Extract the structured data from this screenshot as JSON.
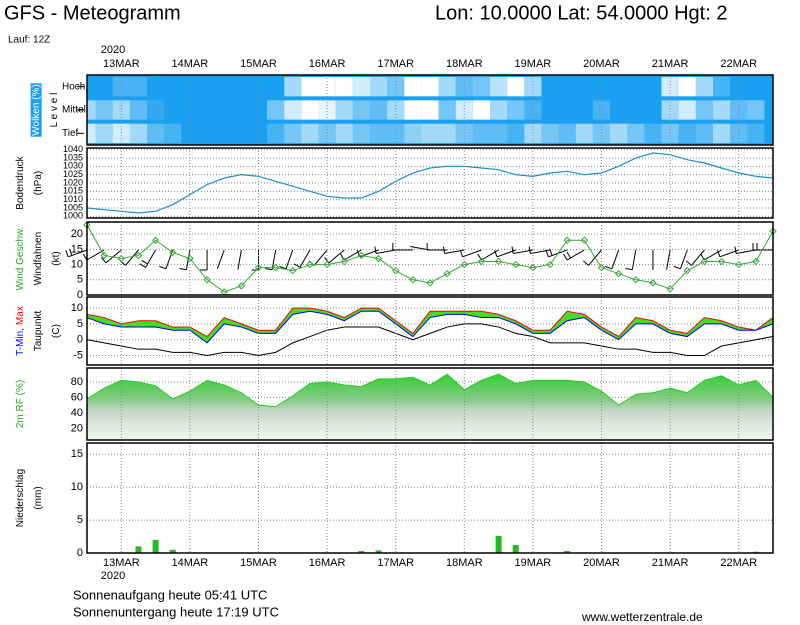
{
  "header": {
    "title": "GFS - Meteogramm",
    "location": "Lon: 10.0000 Lat: 54.0000 Hgt: 2",
    "run": "Lauf: 12Z"
  },
  "chart_data": {
    "type": "meteogram",
    "year": "2020",
    "categories": [
      null,
      null,
      "13MAR",
      null,
      null,
      null,
      "14MAR",
      null,
      null,
      null,
      "15MAR",
      null,
      null,
      null,
      "16MAR",
      null,
      null,
      null,
      "17MAR",
      null,
      null,
      null,
      "18MAR",
      null,
      null,
      null,
      "19MAR",
      null,
      null,
      null,
      "20MAR",
      null,
      null,
      null,
      "21MAR",
      null,
      null,
      null,
      "22MAR",
      null,
      null
    ],
    "panels": [
      {
        "type": "heatmap",
        "ylabel": [
          [
            {
              "text": "Wolken (%)",
              "color": "#ffffff"
            }
          ],
          [
            {
              "text": "L e v e l",
              "color": "#000000"
            }
          ]
        ],
        "background": "#1aa0f0",
        "cloud_color": "#ffffff",
        "series": [
          {
            "name": "Hoch",
            "values": [
              0,
              0,
              20,
              20,
              0,
              0,
              0,
              0,
              0,
              0,
              0,
              0,
              60,
              100,
              100,
              100,
              80,
              60,
              40,
              100,
              100,
              60,
              30,
              40,
              70,
              100,
              60,
              0,
              0,
              0,
              0,
              0,
              0,
              0,
              80,
              100,
              60,
              20,
              0,
              0,
              0
            ]
          },
          {
            "name": "Mittel",
            "values": [
              60,
              40,
              60,
              30,
              10,
              0,
              0,
              0,
              0,
              0,
              0,
              40,
              80,
              100,
              90,
              60,
              40,
              30,
              60,
              100,
              100,
              40,
              80,
              100,
              60,
              40,
              20,
              0,
              0,
              0,
              20,
              0,
              0,
              0,
              60,
              80,
              40,
              60,
              30,
              40,
              0
            ]
          },
          {
            "name": "Tief",
            "values": [
              80,
              60,
              80,
              60,
              30,
              20,
              0,
              0,
              0,
              0,
              0,
              20,
              40,
              60,
              40,
              60,
              40,
              30,
              30,
              50,
              60,
              60,
              40,
              30,
              30,
              20,
              60,
              40,
              30,
              60,
              40,
              60,
              40,
              20,
              40,
              20,
              30,
              60,
              30,
              20,
              0
            ]
          }
        ]
      },
      {
        "type": "line",
        "ylabel": [
          [
            {
              "text": "Bodendruck",
              "color": "#000000"
            }
          ],
          [
            {
              "text": "(hPa)",
              "color": "#000000"
            }
          ]
        ],
        "ylim": [
          999,
          1041
        ],
        "yticks": [
          1000,
          1005,
          1010,
          1015,
          1020,
          1025,
          1030,
          1035,
          1040
        ],
        "color": "#1f8fc8",
        "values": [
          1005,
          1004,
          1003,
          1002,
          1003,
          1007,
          1013,
          1019,
          1023,
          1025,
          1024,
          1021,
          1018,
          1015,
          1012,
          1011,
          1011,
          1015,
          1021,
          1026,
          1029,
          1030,
          1030,
          1029,
          1028,
          1025,
          1024,
          1026,
          1027,
          1025,
          1026,
          1030,
          1035,
          1038,
          1037,
          1034,
          1032,
          1029,
          1026,
          1024,
          1023
        ]
      },
      {
        "type": "wind",
        "ylabel": [
          [
            {
              "text": "Wind Geschw.",
              "color": "#22aa22"
            }
          ],
          [
            {
              "text": "Windfahnen",
              "color": "#000000"
            }
          ],
          [
            {
              "text": "(kt)",
              "color": "#000000"
            }
          ]
        ],
        "ylim": [
          0,
          24
        ],
        "yticks": [
          0,
          5,
          10,
          15,
          20
        ],
        "color": "#33aa33",
        "barb_color": "#000000",
        "values": [
          23,
          13,
          12,
          13,
          18,
          14,
          12,
          5,
          1,
          3,
          9,
          9,
          8,
          10,
          10,
          11,
          13,
          12,
          8,
          5,
          4,
          7,
          10,
          11,
          11,
          10,
          9,
          10,
          18,
          18,
          9,
          7,
          5,
          4,
          2,
          8,
          11,
          11,
          10,
          11,
          21
        ],
        "directions": [
          250,
          240,
          230,
          220,
          210,
          200,
          190,
          180,
          200,
          190,
          180,
          190,
          200,
          210,
          220,
          230,
          240,
          250,
          260,
          270,
          280,
          270,
          260,
          250,
          240,
          250,
          260,
          260,
          250,
          240,
          220,
          200,
          190,
          180,
          190,
          200,
          220,
          240,
          250,
          260,
          270
        ]
      },
      {
        "type": "band",
        "ylabel": [
          [
            {
              "text": "T-Min,",
              "color": "#0000ff"
            },
            {
              "text": "Max",
              "color": "#ff0000"
            }
          ],
          [
            {
              "text": "Taupunkt",
              "color": "#000000"
            }
          ],
          [
            {
              "text": "(C)",
              "color": "#000000"
            }
          ]
        ],
        "ylim": [
          -8,
          13.5
        ],
        "yticks": [
          -5,
          0,
          5,
          10
        ],
        "fill": "#44dd22",
        "series": [
          {
            "color": "#ff0000",
            "values": [
              8,
              7,
              5,
              6,
              6,
              4,
              4,
              1,
              7,
              5,
              3,
              3,
              10,
              10,
              9,
              7,
              10,
              10,
              6,
              2,
              9,
              9,
              9,
              9,
              8,
              6,
              3,
              3,
              9,
              8,
              4,
              1,
              7,
              6,
              3,
              2,
              7,
              6,
              4,
              3,
              7
            ]
          },
          {
            "color": "#0000ff",
            "values": [
              7,
              5,
              4,
              4,
              4,
              3,
              3,
              -1,
              5,
              4,
              2,
              2,
              8,
              9,
              8,
              6,
              9,
              9,
              5,
              1,
              7,
              8,
              8,
              7,
              7,
              5,
              2,
              2,
              6,
              7,
              3,
              0,
              5,
              5,
              2,
              1,
              5,
              5,
              3,
              3,
              5
            ]
          },
          {
            "color": "#000000",
            "values": [
              0,
              -1,
              -2,
              -3,
              -3,
              -4,
              -4,
              -5,
              -4,
              -4,
              -5,
              -4,
              -1,
              1,
              3,
              4,
              4,
              4,
              2,
              0,
              2,
              4,
              5,
              5,
              4,
              2,
              1,
              -1,
              -1,
              -1,
              -2,
              -3,
              -3,
              -4,
              -4,
              -5,
              -5,
              -2,
              -1,
              0,
              1
            ]
          }
        ]
      },
      {
        "type": "area",
        "ylabel": [
          [
            {
              "text": "2m RF (%)",
              "color": "#22aa22"
            }
          ]
        ],
        "ylim": [
          5,
          98
        ],
        "yticks": [
          20,
          40,
          60,
          80
        ],
        "color": "#22cc22",
        "values": [
          58,
          72,
          82,
          80,
          75,
          58,
          68,
          82,
          76,
          66,
          50,
          48,
          62,
          78,
          80,
          76,
          74,
          84,
          84,
          86,
          76,
          90,
          70,
          82,
          90,
          78,
          82,
          82,
          82,
          80,
          68,
          50,
          64,
          66,
          72,
          66,
          82,
          88,
          76,
          82,
          60
        ]
      },
      {
        "type": "bar",
        "ylabel": [
          [
            {
              "text": "Niederschlag",
              "color": "#000000"
            }
          ],
          [
            {
              "text": "(mm)",
              "color": "#000000"
            }
          ]
        ],
        "ylim": [
          0,
          16.7
        ],
        "yticks": [
          0,
          5,
          10,
          15
        ],
        "color": "#22bb22",
        "values": [
          0,
          0,
          0,
          1.0,
          2.0,
          0.5,
          0,
          0,
          0,
          0,
          0,
          0,
          0,
          0,
          0,
          0,
          0.3,
          0.4,
          0,
          0,
          0,
          0,
          0,
          0,
          2.6,
          1.2,
          0,
          0,
          0.3,
          0,
          0,
          0,
          0,
          0,
          0,
          0,
          0,
          0,
          0,
          0.2,
          0
        ]
      }
    ]
  },
  "footer": {
    "sunrise": "Sonnenaufgang heute 05:41 UTC",
    "sunset": "Sonnenuntergang heute 17:19 UTC",
    "source": "www.wetterzentrale.de"
  }
}
